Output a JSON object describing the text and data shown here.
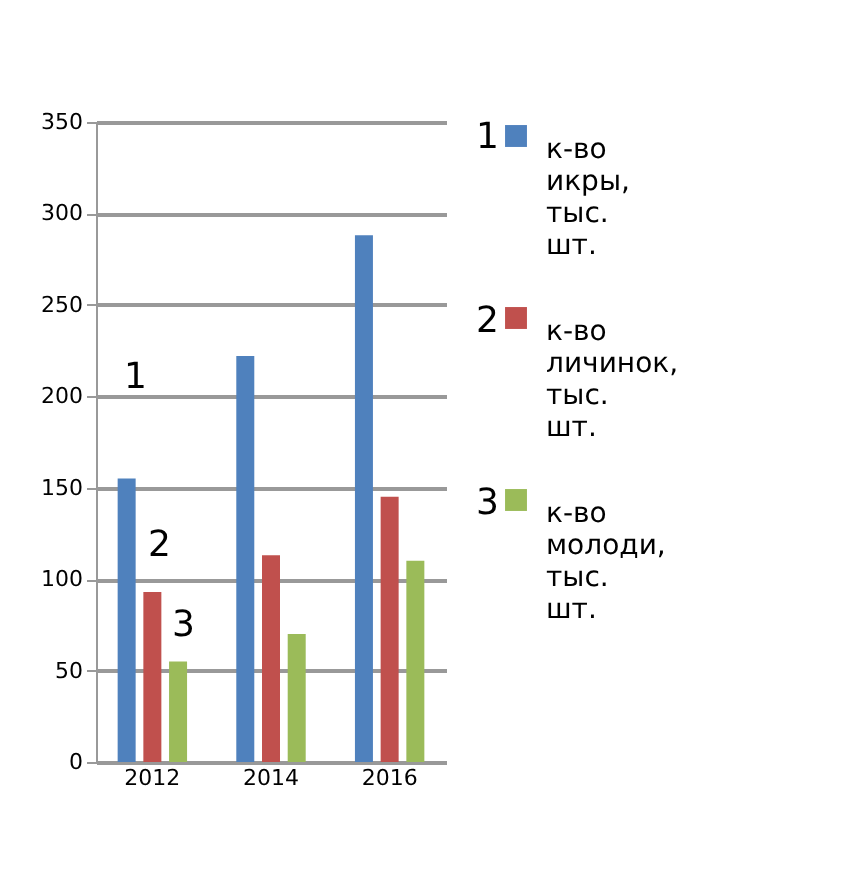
{
  "chart_data": {
    "type": "bar",
    "categories": [
      "2012",
      "2014",
      "2016"
    ],
    "series": [
      {
        "name": "к-во икры, тыс. шт.",
        "color": "#4f81bd",
        "values": [
          155,
          222,
          288
        ]
      },
      {
        "name": "к-во личинок, тыс. шт.",
        "color": "#c0504d",
        "values": [
          93,
          113,
          145
        ]
      },
      {
        "name": "к-во молоди, тыс. шт.",
        "color": "#9bbb59",
        "values": [
          55,
          70,
          110
        ]
      }
    ],
    "ylim": [
      0,
      350
    ],
    "yticks": [
      0,
      50,
      100,
      150,
      200,
      250,
      300,
      350
    ],
    "grid": "y",
    "legend": "right",
    "annotations": [
      "1",
      "2",
      "3",
      "1",
      "2",
      "3"
    ]
  }
}
